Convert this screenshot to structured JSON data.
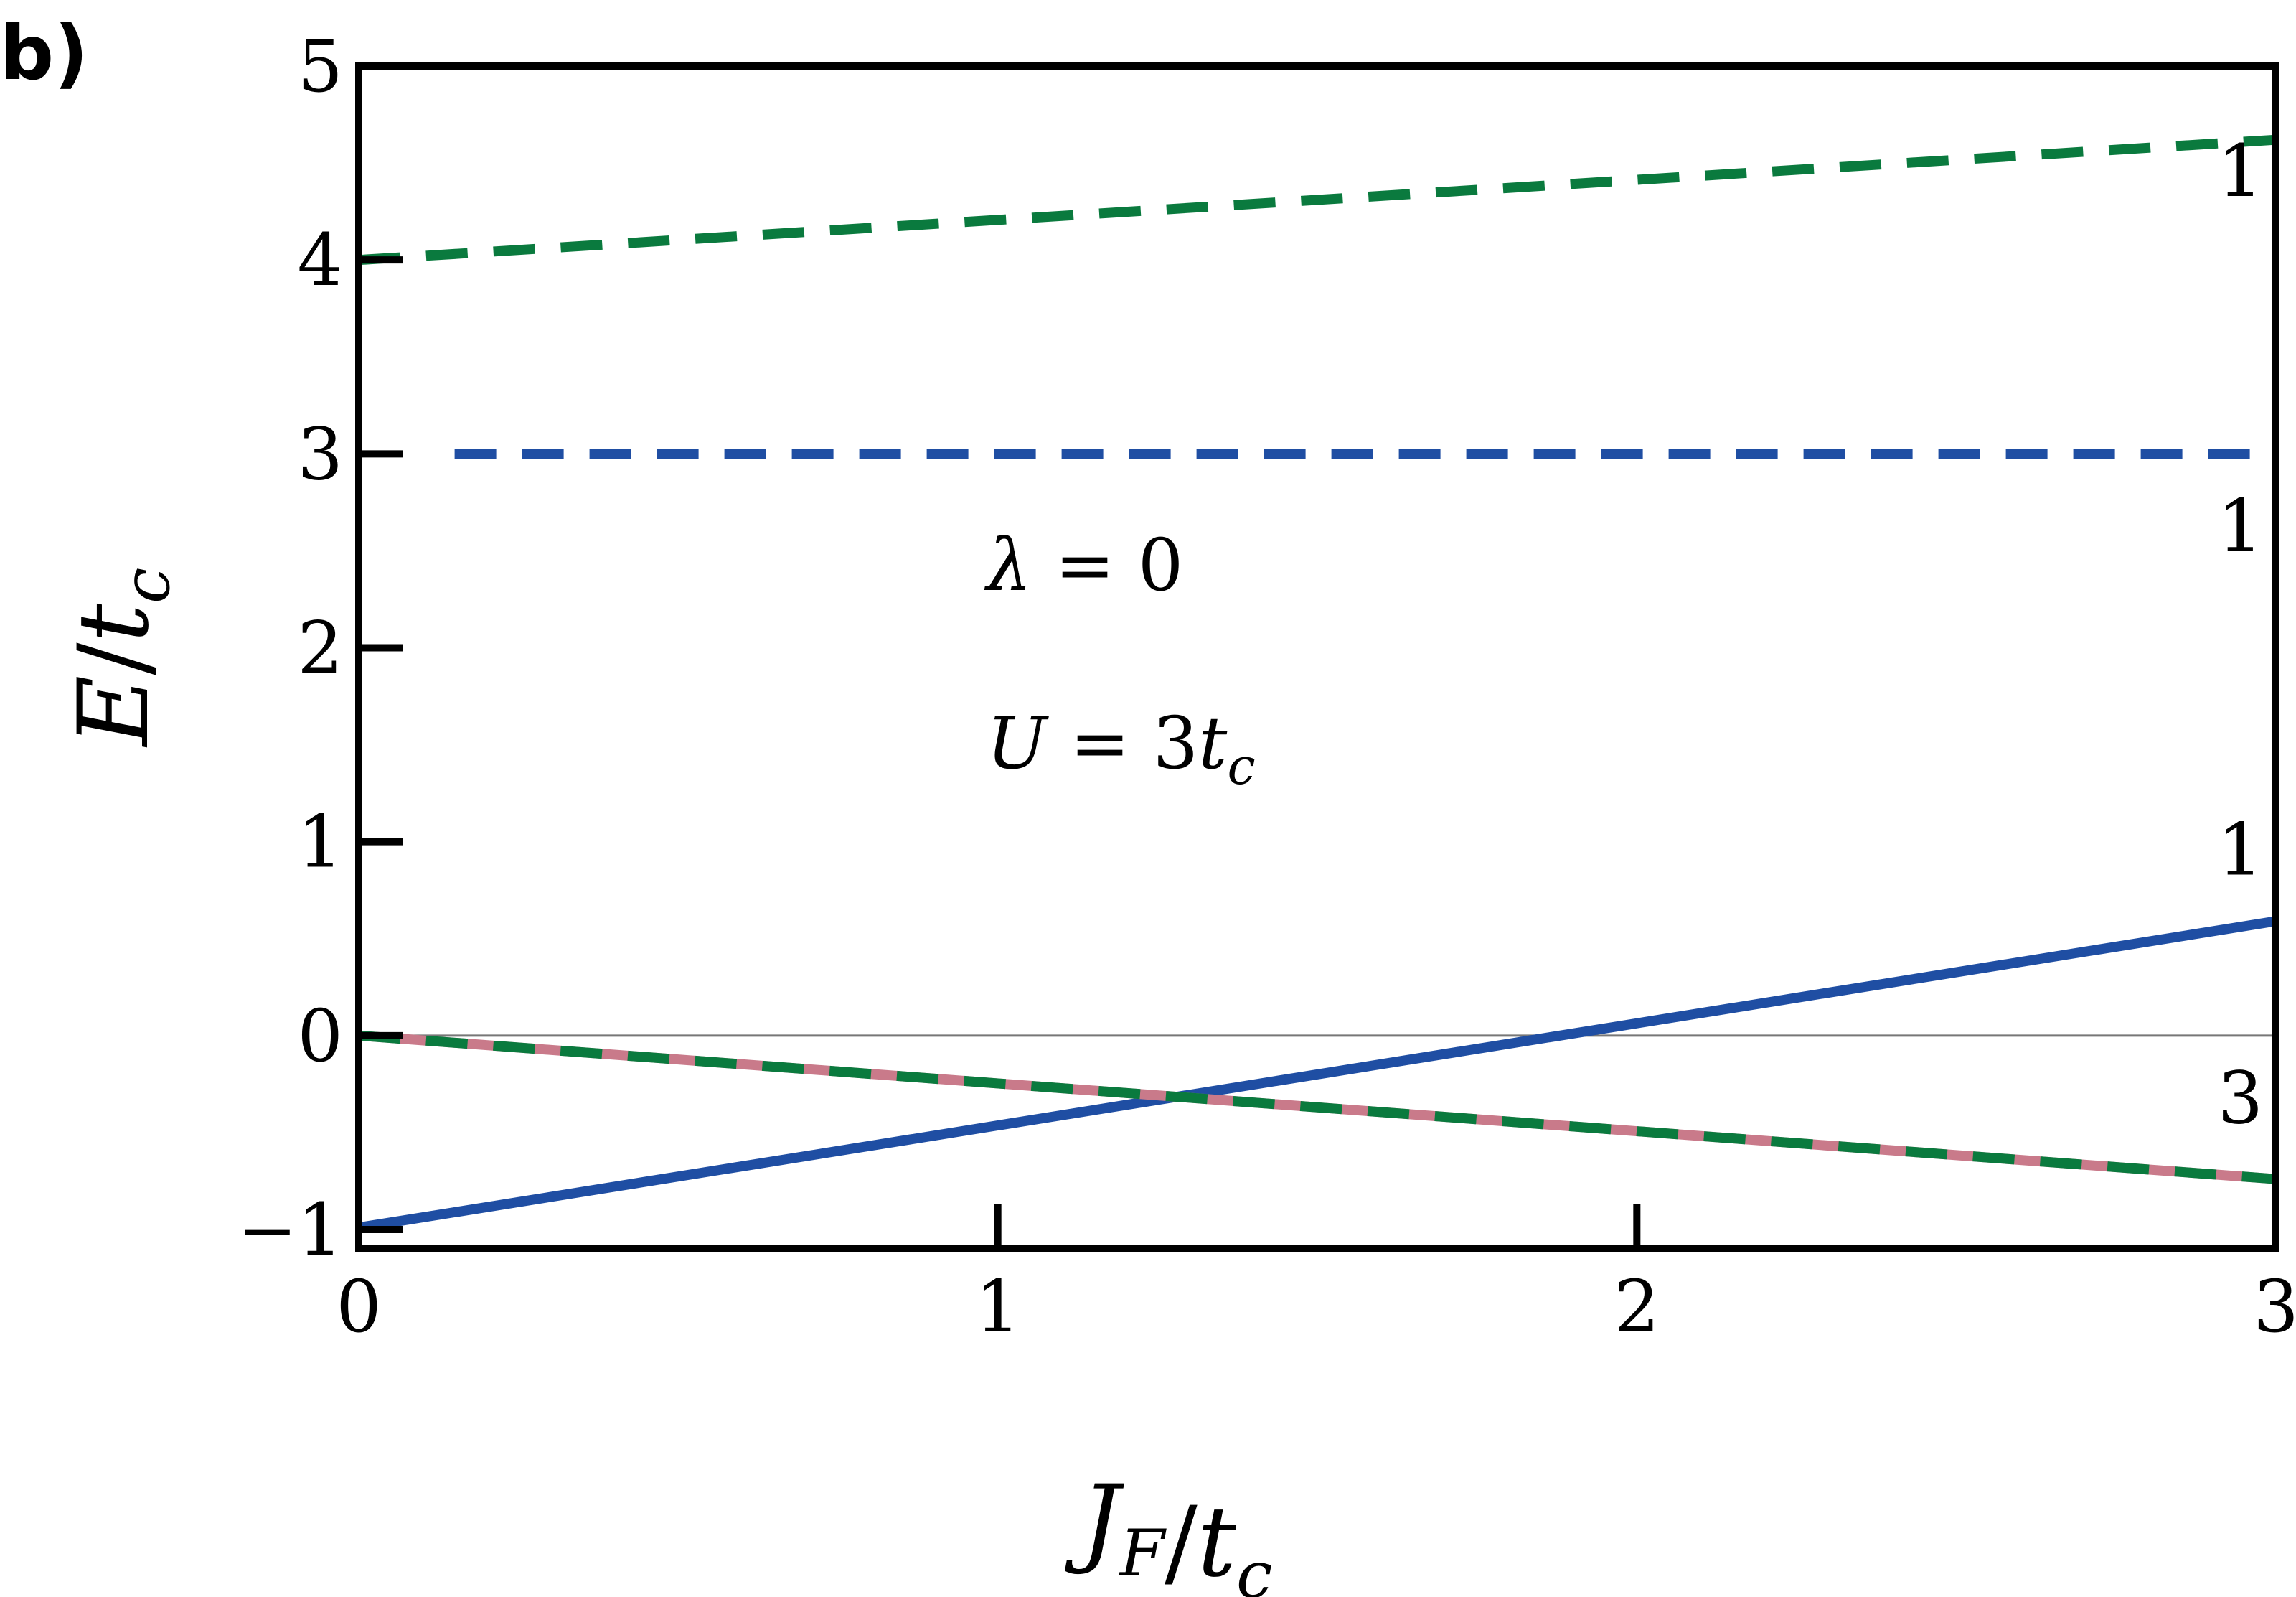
{
  "panel_label": "b)",
  "chart_data": {
    "type": "line",
    "xlabel": "J_F/t_c",
    "ylabel": "E/t_c",
    "xlim": [
      0,
      3
    ],
    "ylim": [
      -1.1,
      5
    ],
    "xticks": [
      0,
      1,
      2,
      3
    ],
    "yticks": [
      -1,
      0,
      1,
      2,
      3,
      4,
      5
    ],
    "xtick_labels": [
      "0",
      "1",
      "2",
      "3"
    ],
    "ytick_labels": [
      "−1",
      "0",
      "1",
      "2",
      "3",
      "4",
      "5"
    ],
    "grid": false,
    "zero_line": true,
    "annotations": {
      "lambda": {
        "symbol": "λ",
        "text": " = 0"
      },
      "U": {
        "symbol": "U",
        "text": " = 3",
        "sub_base": "t",
        "sub": "c"
      }
    },
    "degeneracy_labels": [
      {
        "text": "1",
        "x": 2.98,
        "y": 4.33
      },
      {
        "text": "1",
        "x": 2.98,
        "y": 2.5
      },
      {
        "text": "1",
        "x": 2.98,
        "y": 0.83
      },
      {
        "text": "3",
        "x": 2.98,
        "y": -0.45
      }
    ],
    "series": [
      {
        "style": "dashed",
        "color": "#0a7a3e",
        "x": [
          0,
          3
        ],
        "y": [
          4.0,
          4.62
        ]
      },
      {
        "style": "dashed",
        "color": "#1f4ea3",
        "x": [
          0.15,
          3
        ],
        "y": [
          3.0,
          3.0
        ]
      },
      {
        "style": "solid",
        "color": "#1f4ea3",
        "x": [
          0,
          3
        ],
        "y": [
          -0.99,
          0.59
        ]
      },
      {
        "style": "solid",
        "color": "#c97a8a",
        "x": [
          0,
          3
        ],
        "y": [
          0.0,
          -0.74
        ]
      },
      {
        "style": "dashed",
        "color": "#0a7a3e",
        "x": [
          0,
          3
        ],
        "y": [
          0.0,
          -0.74
        ]
      }
    ]
  }
}
